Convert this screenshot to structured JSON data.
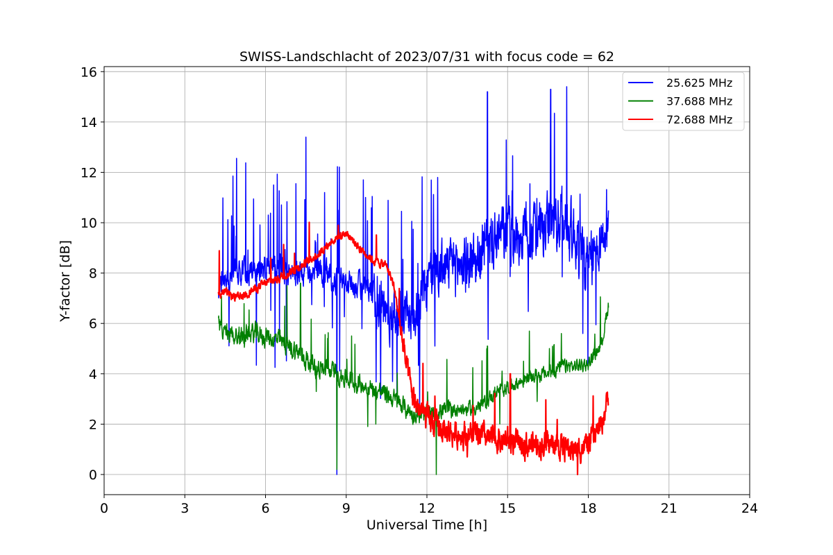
{
  "chart_data": {
    "type": "line",
    "title": "SWISS-Landschlacht of 2023/07/31 with focus code = 62",
    "xlabel": "Universal Time [h]",
    "ylabel": "Y-factor [dB]",
    "xlim": [
      0,
      24
    ],
    "ylim": [
      -0.8,
      16.2
    ],
    "xticks": [
      0,
      3,
      6,
      9,
      12,
      15,
      18,
      21,
      24
    ],
    "yticks": [
      0,
      2,
      4,
      6,
      8,
      10,
      12,
      14,
      16
    ],
    "grid": true,
    "legend_position": "top-right",
    "series": [
      {
        "name": "25.625 MHz",
        "color": "#0000ff",
        "x": [
          4.25,
          4.5,
          5.0,
          5.5,
          6.0,
          6.5,
          7.0,
          7.5,
          8.0,
          8.5,
          9.0,
          9.5,
          10.0,
          10.5,
          11.0,
          11.5,
          12.0,
          12.5,
          13.0,
          13.5,
          14.0,
          14.5,
          15.0,
          15.5,
          16.0,
          16.5,
          17.0,
          17.5,
          18.0,
          18.5,
          18.75
        ],
        "y": [
          7.6,
          7.8,
          8.0,
          8.1,
          8.2,
          8.3,
          8.0,
          8.1,
          8.0,
          7.8,
          7.6,
          7.5,
          7.0,
          6.5,
          6.3,
          6.4,
          7.6,
          8.2,
          8.3,
          8.4,
          8.6,
          9.3,
          9.6,
          9.5,
          9.5,
          9.7,
          10.2,
          9.5,
          8.0,
          9.6,
          9.3
        ],
        "peaks": [
          [
            7.5,
            13.4
          ],
          [
            14.25,
            15.2
          ],
          [
            17.2,
            15.4
          ],
          [
            16.6,
            15.3
          ],
          [
            12.4,
            11.8
          ],
          [
            6.3,
            11.5
          ],
          [
            8.2,
            11.2
          ]
        ],
        "dips": [
          [
            8.65,
            0.0
          ],
          [
            17.8,
            5.6
          ],
          [
            12.3,
            5.1
          ]
        ]
      },
      {
        "name": "37.688 MHz",
        "color": "#008000",
        "x": [
          4.25,
          4.5,
          5.0,
          5.5,
          6.0,
          6.5,
          7.0,
          7.5,
          8.0,
          8.5,
          9.0,
          9.5,
          10.0,
          10.5,
          11.0,
          11.5,
          12.0,
          12.5,
          13.0,
          13.5,
          14.0,
          14.5,
          15.0,
          15.5,
          16.0,
          16.5,
          17.0,
          17.5,
          18.0,
          18.5,
          18.75
        ],
        "y": [
          6.0,
          5.6,
          5.5,
          5.6,
          5.5,
          5.3,
          5.0,
          4.6,
          4.2,
          4.1,
          3.8,
          3.6,
          3.4,
          3.2,
          2.8,
          2.4,
          2.3,
          2.5,
          2.6,
          2.6,
          2.7,
          3.2,
          3.5,
          3.7,
          3.9,
          4.0,
          4.3,
          4.3,
          4.4,
          5.2,
          6.8
        ],
        "peaks": [
          [
            6.8,
            7.5
          ],
          [
            7.3,
            7.6
          ],
          [
            14.25,
            5.1
          ],
          [
            17.0,
            5.6
          ]
        ],
        "dips": [
          [
            8.65,
            0.2
          ],
          [
            12.35,
            0.0
          ],
          [
            10.1,
            2.0
          ]
        ]
      },
      {
        "name": "72.688 MHz",
        "color": "#ff0000",
        "x": [
          4.25,
          4.5,
          5.0,
          5.5,
          6.0,
          6.5,
          7.0,
          7.5,
          8.0,
          8.5,
          9.0,
          9.5,
          10.0,
          10.5,
          10.75,
          11.0,
          11.25,
          11.5,
          12.0,
          12.5,
          13.0,
          13.5,
          14.0,
          14.5,
          15.0,
          15.5,
          16.0,
          16.5,
          17.0,
          17.5,
          18.0,
          18.5,
          18.75
        ],
        "y": [
          7.2,
          7.2,
          7.0,
          7.3,
          7.6,
          7.8,
          8.1,
          8.4,
          8.8,
          9.3,
          9.6,
          9.0,
          8.5,
          8.3,
          7.6,
          6.0,
          4.2,
          3.0,
          2.2,
          1.8,
          1.6,
          1.6,
          1.5,
          1.4,
          1.3,
          1.2,
          1.2,
          1.2,
          1.1,
          1.0,
          1.2,
          2.0,
          3.2
        ],
        "peaks": [
          [
            15.1,
            4.2
          ],
          [
            15.1,
            4.0
          ],
          [
            6.2,
            8.6
          ],
          [
            8.7,
            9.9
          ]
        ],
        "dips": [
          [
            17.6,
            0.0
          ],
          [
            13.5,
            0.7
          ]
        ]
      }
    ]
  }
}
